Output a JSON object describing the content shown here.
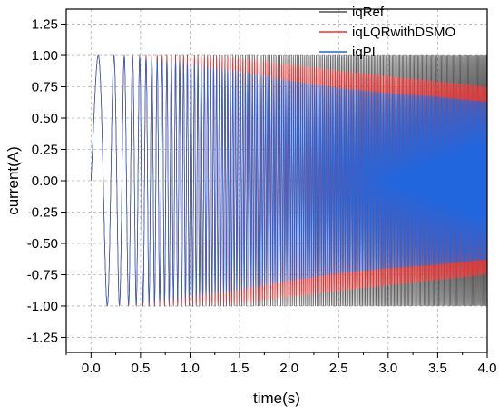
{
  "chart_data": {
    "type": "line",
    "title": "",
    "xlabel": "time(s)",
    "ylabel": "current(A)",
    "xlim": [
      -0.25,
      4.0
    ],
    "ylim": [
      -1.37,
      1.37
    ],
    "x_ticks": [
      0.0,
      0.5,
      1.0,
      1.5,
      2.0,
      2.5,
      3.0,
      3.5,
      4.0
    ],
    "x_tick_labels": [
      "0.0",
      "0.5",
      "1.0",
      "1.5",
      "2.0",
      "2.5",
      "3.0",
      "3.5",
      "4.0"
    ],
    "y_ticks": [
      1.25,
      1.0,
      0.75,
      0.5,
      0.25,
      0.0,
      -0.25,
      -0.5,
      -0.75,
      -1.0,
      -1.25
    ],
    "y_tick_labels": [
      "1.25",
      "1.00",
      "0.75",
      "0.50",
      "0.25",
      "0.00",
      "-0.25",
      "-0.50",
      "-0.75",
      "-1.00",
      "-1.25"
    ],
    "grid": true,
    "legend_position": "top-right",
    "series": [
      {
        "name": "iqRef",
        "color": "#505050",
        "description_of_shape": "chirp sinusoid of amplitude 1.0 with steadily increasing frequency",
        "amplitude_envelope": {
          "t": [
            0.0,
            4.0
          ],
          "amp": [
            1.0,
            1.0
          ]
        }
      },
      {
        "name": "iqLQRwithDSMO",
        "color": "#ee3333",
        "amplitude_envelope": {
          "t": [
            0.0,
            1.5,
            2.5,
            4.0
          ],
          "amp": [
            1.0,
            0.98,
            0.88,
            0.75
          ]
        }
      },
      {
        "name": "iqPI",
        "color": "#2266dd",
        "amplitude_envelope": {
          "t": [
            0.0,
            0.5,
            1.0,
            1.5,
            2.0,
            2.5,
            3.0,
            3.5,
            4.0
          ],
          "amp": [
            1.0,
            0.98,
            0.93,
            0.87,
            0.8,
            0.74,
            0.7,
            0.67,
            0.63
          ]
        }
      }
    ]
  }
}
